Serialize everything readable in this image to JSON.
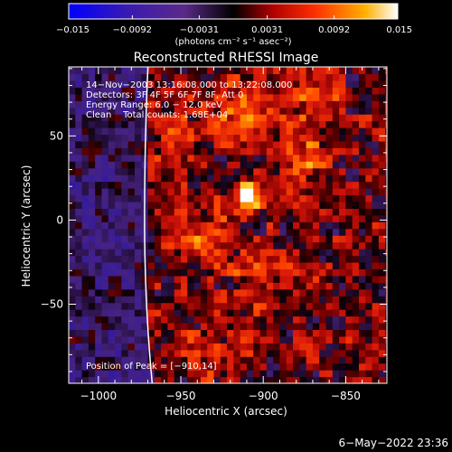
{
  "colorbar": {
    "tick_labels": [
      "−0.015",
      "−0.0092",
      "−0.0031",
      "0.0031",
      "0.0092",
      "0.015"
    ],
    "tick_values": [
      -0.015,
      -0.0092,
      -0.0031,
      0.0031,
      0.0092,
      0.015
    ],
    "range": [
      -0.015,
      0.015
    ],
    "unit_label": "(photons cm⁻² s⁻¹ asec⁻²)",
    "colors": [
      "#0000ff",
      "#4a1aa0",
      "#5a2a8a",
      "#000000",
      "#d01010",
      "#ff8000",
      "#ffffff"
    ]
  },
  "chart_data": {
    "type": "heatmap",
    "title": "Reconstructed RHESSI Image",
    "xlabel": "Heliocentric X (arcsec)",
    "ylabel": "Heliocentric Y (arcsec)",
    "xlim": [
      -1018,
      -825
    ],
    "ylim": [
      -97,
      91
    ],
    "x_ticks": [
      -1000,
      -950,
      -900,
      -850
    ],
    "x_tick_labels": [
      "−1000",
      "−950",
      "−900",
      "−850"
    ],
    "y_ticks": [
      50,
      0,
      -50
    ],
    "y_tick_labels": [
      "50",
      "0",
      "−50"
    ],
    "annotations": [
      "14−Nov−2003 13:16:08.000 to 13:22:08.000",
      "Detectors: 3F 4F 5F 6F 7F 8F, Att 0",
      "Energy Range: 6.0 − 12.0 keV",
      "Clean    Total counts: 1.68E+04"
    ],
    "peak_label": "Position of Peak = [−910,14]",
    "peak_position": [
      -910,
      14
    ],
    "sources": [
      {
        "x": -910,
        "y": 14,
        "intensity": 0.015
      },
      {
        "x": -912,
        "y": 68,
        "intensity": 0.0085
      },
      {
        "x": -880,
        "y": 35,
        "intensity": 0.006
      },
      {
        "x": -935,
        "y": -10,
        "intensity": 0.006
      },
      {
        "x": -900,
        "y": -35,
        "intensity": 0.005
      },
      {
        "x": -930,
        "y": -80,
        "intensity": 0.0045
      },
      {
        "x": -955,
        "y": 45,
        "intensity": 0.005
      },
      {
        "x": -870,
        "y": 75,
        "intensity": 0.005
      }
    ],
    "limb": "solar limb arc near x = −970"
  },
  "footer": {
    "timestamp": "6−May−2022 23:36"
  }
}
